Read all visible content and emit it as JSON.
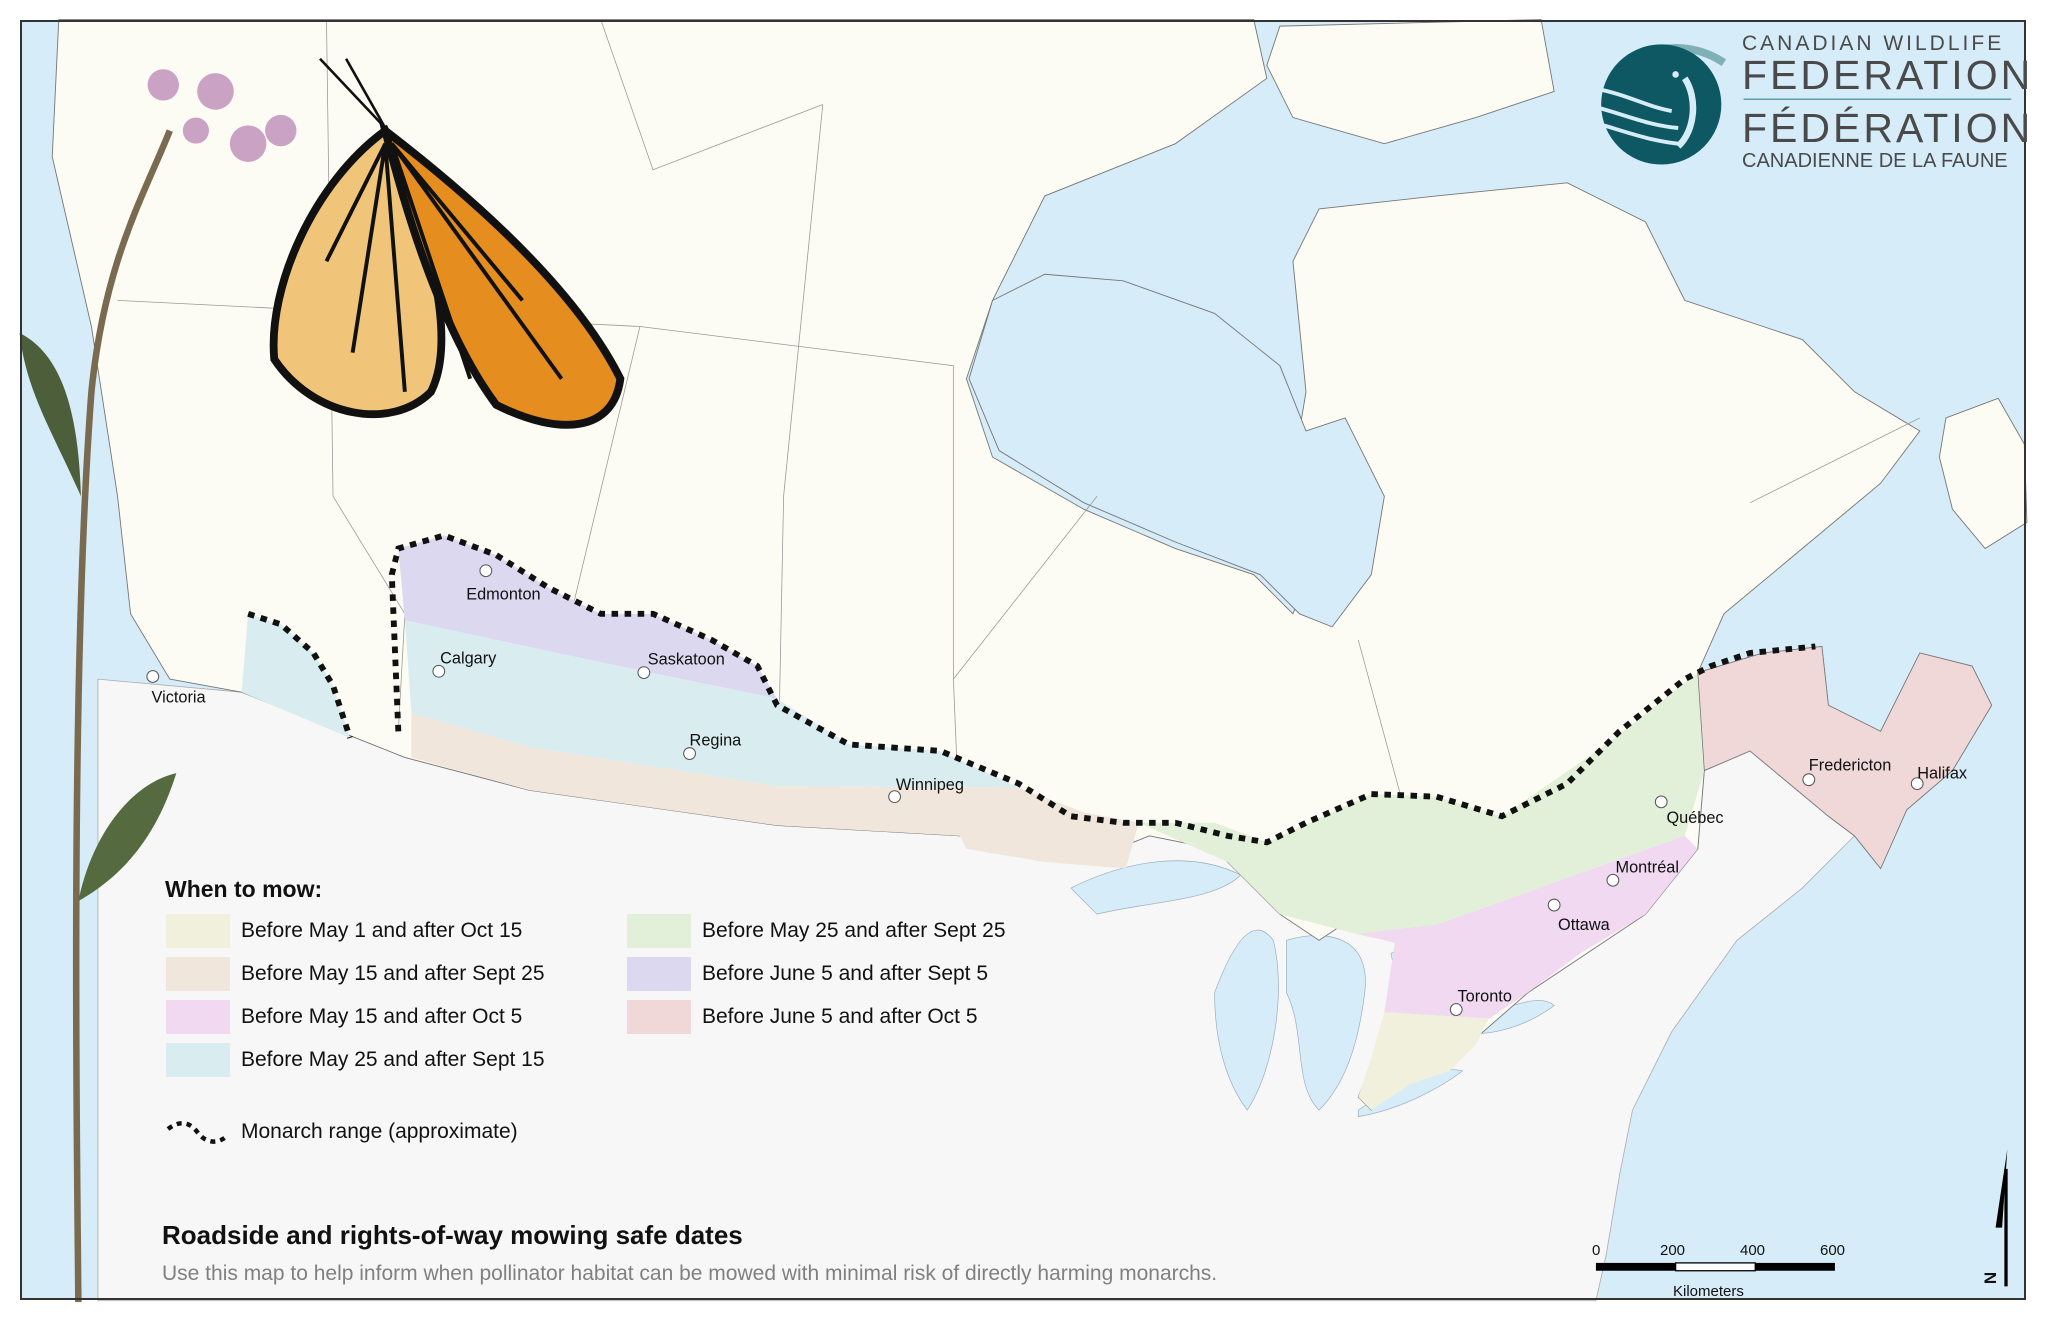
{
  "colors": {
    "ocean": "#d6ecf8",
    "canada_land": "#fdfcf4",
    "us_land": "#f7f7f7",
    "border": "#888888",
    "logo_teal": "#0e5864",
    "logo_arc": "#7fb0b6"
  },
  "logo": {
    "line1": "CANADIAN WILDLIFE",
    "line2": "FEDERATION",
    "line3": "FÉDÉRATION",
    "line4": "CANADIENNE DE LA FAUNE",
    "icon": "loon-logo-icon"
  },
  "cities": [
    {
      "name": "Victoria"
    },
    {
      "name": "Edmonton"
    },
    {
      "name": "Calgary"
    },
    {
      "name": "Saskatoon"
    },
    {
      "name": "Regina"
    },
    {
      "name": "Winnipeg"
    },
    {
      "name": "Toronto"
    },
    {
      "name": "Ottawa"
    },
    {
      "name": "Montréal"
    },
    {
      "name": "Québec"
    },
    {
      "name": "Fredericton"
    },
    {
      "name": "Halifax"
    }
  ],
  "legend": {
    "title": "When to mow:",
    "items": [
      {
        "label": "Before May 1 and after Oct 15",
        "color": "#f0f0dc"
      },
      {
        "label": "Before May 15 and after Sept 25",
        "color": "#f1e6dc"
      },
      {
        "label": "Before May 15 and after Oct 5",
        "color": "#f0d9f1"
      },
      {
        "label": "Before May 25 and after Sept 15",
        "color": "#d9ecef"
      },
      {
        "label": "Before May 25 and after Sept 25",
        "color": "#e2f0d9"
      },
      {
        "label": "Before June 5 and after Sept 5",
        "color": "#dcd8ef"
      },
      {
        "label": "Before June 5 and after Oct 5",
        "color": "#f0d8d8"
      }
    ],
    "monarch_label": "Monarch range (approximate)"
  },
  "title": "Roadside and rights-of-way mowing safe dates",
  "subtitle": "Use this map to help inform when pollinator habitat can be mowed with minimal risk of directly harming monarchs.",
  "scale_bar": {
    "ticks": [
      "0",
      "200",
      "400",
      "600"
    ],
    "unit": "Kilometers"
  },
  "north_arrow": {
    "label": "N"
  }
}
